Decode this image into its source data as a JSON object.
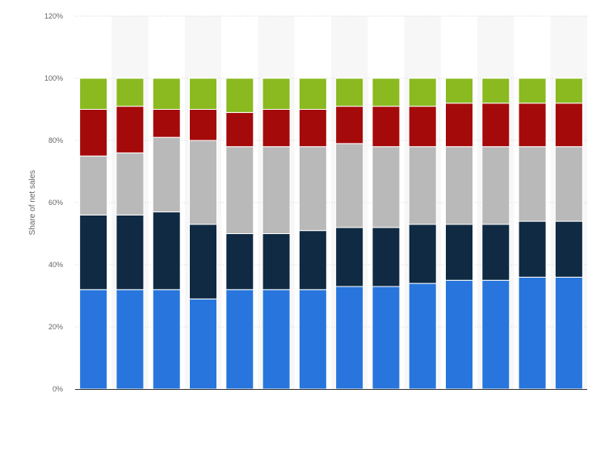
{
  "chart_data": {
    "type": "bar",
    "stacked": true,
    "title": "",
    "xlabel": "",
    "ylabel": "Share of net sales",
    "ylim": [
      0,
      120
    ],
    "y_ticks": [
      "0%",
      "20%",
      "40%",
      "60%",
      "80%",
      "100%",
      "120%"
    ],
    "grid": true,
    "categories": [
      "",
      "",
      "",
      "",
      "",
      "",
      "",
      "",
      "",
      "",
      "",
      "",
      "",
      ""
    ],
    "series": [
      {
        "values": [
          32,
          32,
          32,
          29,
          32,
          32,
          32,
          33,
          33,
          34,
          35,
          35,
          36,
          36
        ],
        "color": "#2876dd"
      },
      {
        "values": [
          24,
          24,
          25,
          24,
          18,
          18,
          19,
          19,
          19,
          19,
          18,
          18,
          18,
          18
        ],
        "color": "#0f2a42"
      },
      {
        "values": [
          19,
          20,
          24,
          27,
          28,
          28,
          27,
          27,
          26,
          25,
          25,
          25,
          24,
          24
        ],
        "color": "#b9b9b9"
      },
      {
        "values": [
          15,
          15,
          9,
          10,
          11,
          12,
          12,
          12,
          13,
          13,
          14,
          14,
          14,
          14
        ],
        "color": "#a50a0a"
      },
      {
        "values": [
          10,
          9,
          10,
          10,
          11,
          10,
          10,
          9,
          9,
          9,
          8,
          8,
          8,
          8
        ],
        "color": "#8ab920"
      }
    ]
  }
}
